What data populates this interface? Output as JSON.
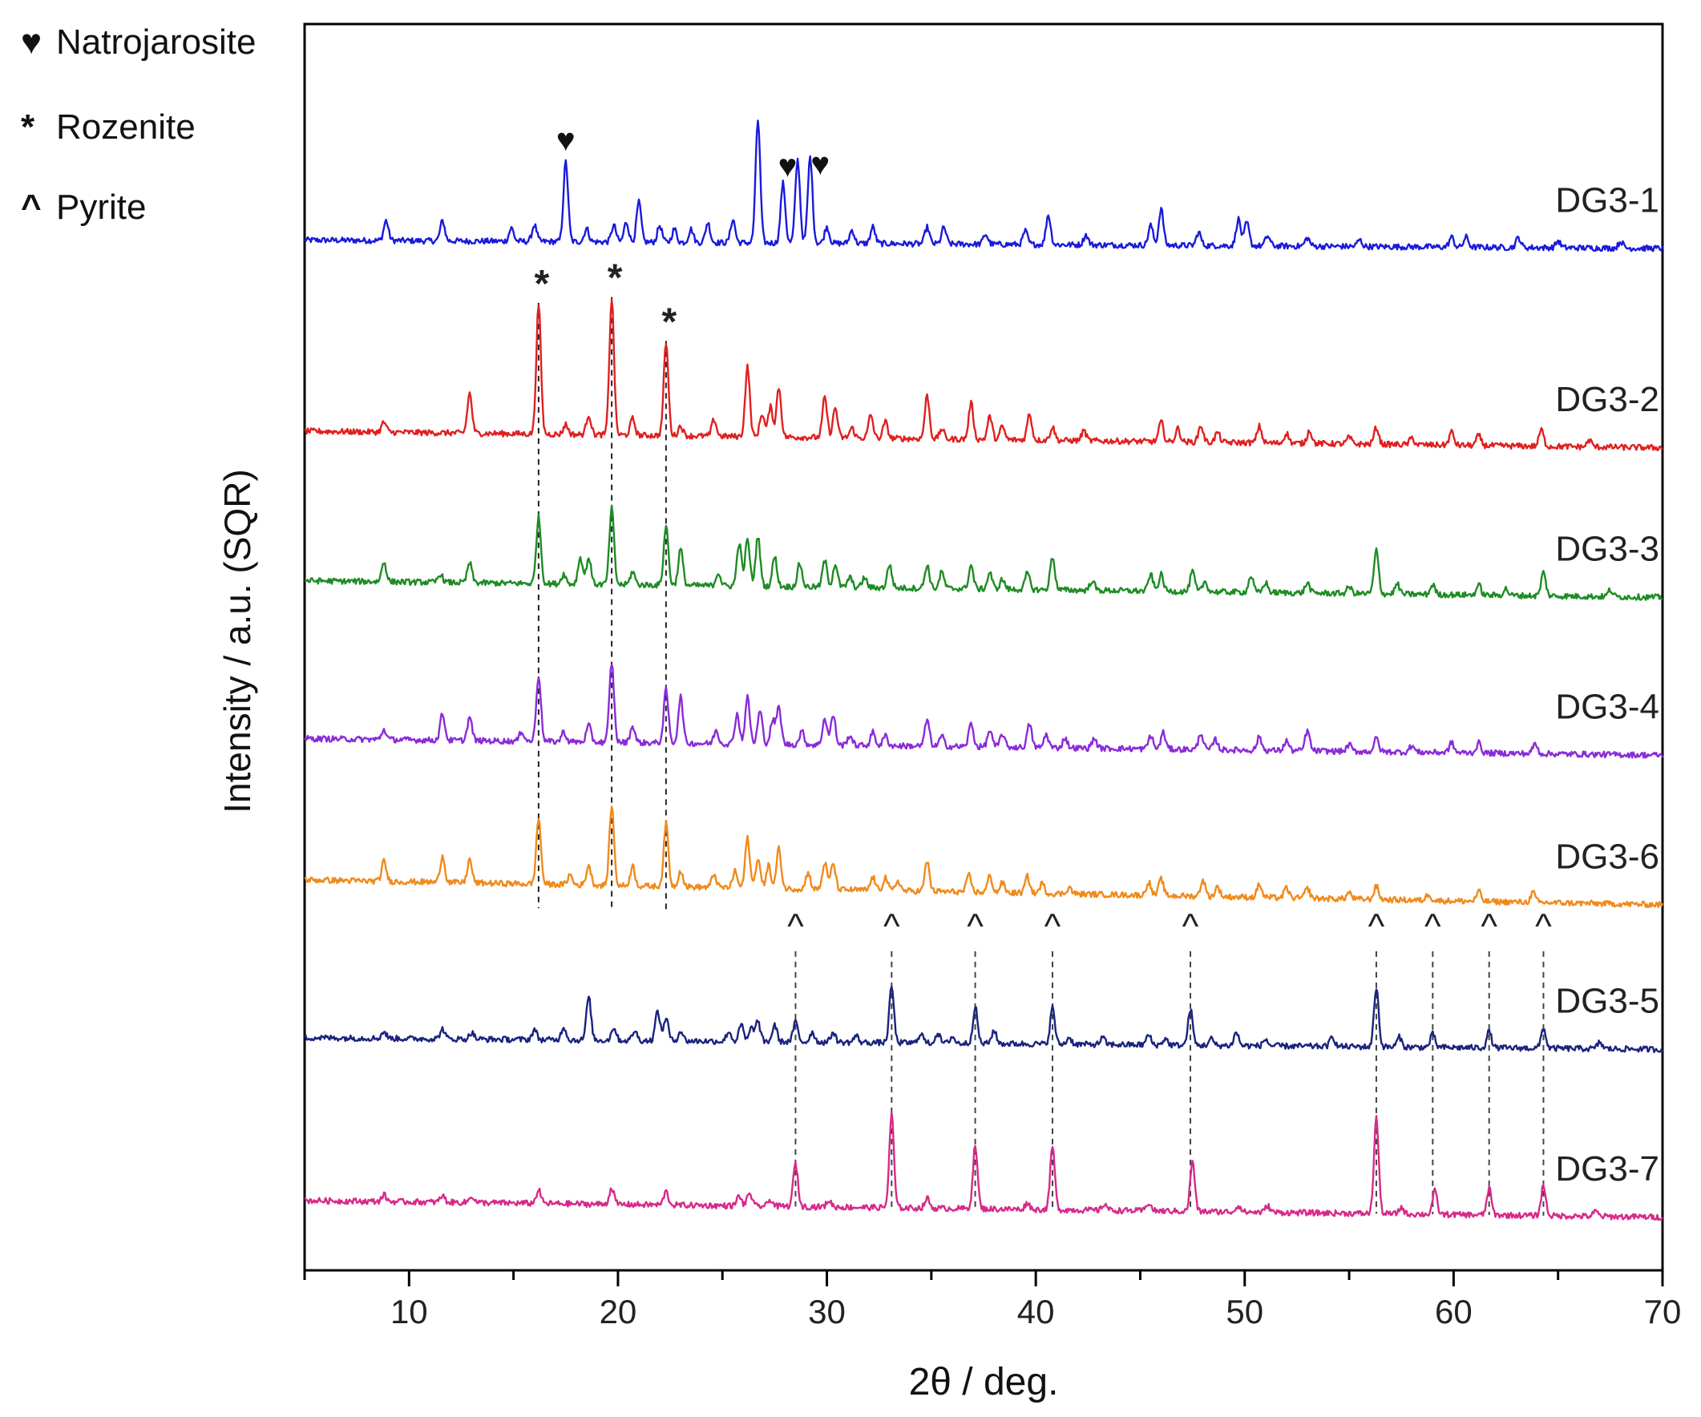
{
  "legend": {
    "natrojarosite": {
      "symbol": "♥",
      "label": "Natrojarosite"
    },
    "rozenite": {
      "symbol": "*",
      "label": "Rozenite"
    },
    "pyrite": {
      "symbol": "^",
      "label": "Pyrite"
    }
  },
  "chart_data": {
    "type": "line",
    "title": "",
    "xlabel": "2θ / deg.",
    "ylabel": "Intensity / a.u. (SQR)",
    "xlim": [
      5,
      70
    ],
    "xticks": [
      10,
      20,
      30,
      40,
      50,
      60,
      70
    ],
    "yticks": [],
    "grid": false,
    "series": [
      {
        "name": "DG3-1",
        "color": "#1a1adc",
        "offset": 6.2,
        "end_offset": 6.15,
        "peaks": [
          [
            8.9,
            0.12
          ],
          [
            11.6,
            0.12
          ],
          [
            14.9,
            0.08
          ],
          [
            16.0,
            0.1
          ],
          [
            17.5,
            0.48
          ],
          [
            18.5,
            0.08
          ],
          [
            19.8,
            0.1
          ],
          [
            20.4,
            0.12
          ],
          [
            21.0,
            0.24
          ],
          [
            22.0,
            0.1
          ],
          [
            22.7,
            0.08
          ],
          [
            23.5,
            0.08
          ],
          [
            24.3,
            0.12
          ],
          [
            25.5,
            0.14
          ],
          [
            26.7,
            0.74
          ],
          [
            27.9,
            0.36
          ],
          [
            28.6,
            0.5
          ],
          [
            29.2,
            0.52
          ],
          [
            30.0,
            0.1
          ],
          [
            31.2,
            0.08
          ],
          [
            32.2,
            0.1
          ],
          [
            34.8,
            0.1
          ],
          [
            35.6,
            0.1
          ],
          [
            37.6,
            0.06
          ],
          [
            39.5,
            0.08
          ],
          [
            40.6,
            0.18
          ],
          [
            42.4,
            0.06
          ],
          [
            45.5,
            0.12
          ],
          [
            46.0,
            0.22
          ],
          [
            47.8,
            0.08
          ],
          [
            49.7,
            0.16
          ],
          [
            50.1,
            0.14
          ],
          [
            51.1,
            0.06
          ],
          [
            53.0,
            0.05
          ],
          [
            55.5,
            0.04
          ],
          [
            59.9,
            0.06
          ],
          [
            60.6,
            0.06
          ],
          [
            63.1,
            0.06
          ],
          [
            65.0,
            0.04
          ],
          [
            68.0,
            0.04
          ]
        ]
      },
      {
        "name": "DG3-2",
        "color": "#e02020",
        "offset": 5.05,
        "end_offset": 4.95,
        "peaks": [
          [
            8.8,
            0.06
          ],
          [
            12.9,
            0.24
          ],
          [
            16.2,
            0.78
          ],
          [
            17.5,
            0.06
          ],
          [
            18.6,
            0.12
          ],
          [
            19.7,
            0.82
          ],
          [
            20.7,
            0.1
          ],
          [
            22.3,
            0.56
          ],
          [
            23.0,
            0.06
          ],
          [
            24.6,
            0.1
          ],
          [
            26.2,
            0.42
          ],
          [
            26.9,
            0.14
          ],
          [
            27.3,
            0.18
          ],
          [
            27.7,
            0.3
          ],
          [
            29.9,
            0.24
          ],
          [
            30.4,
            0.18
          ],
          [
            31.2,
            0.06
          ],
          [
            32.1,
            0.14
          ],
          [
            32.8,
            0.1
          ],
          [
            34.8,
            0.26
          ],
          [
            35.5,
            0.06
          ],
          [
            36.9,
            0.22
          ],
          [
            37.8,
            0.14
          ],
          [
            38.4,
            0.08
          ],
          [
            39.7,
            0.16
          ],
          [
            40.8,
            0.08
          ],
          [
            42.3,
            0.06
          ],
          [
            46.0,
            0.12
          ],
          [
            46.8,
            0.08
          ],
          [
            47.9,
            0.1
          ],
          [
            48.7,
            0.06
          ],
          [
            50.7,
            0.1
          ],
          [
            52.0,
            0.06
          ],
          [
            53.1,
            0.08
          ],
          [
            55.0,
            0.04
          ],
          [
            56.3,
            0.1
          ],
          [
            58.0,
            0.04
          ],
          [
            59.9,
            0.08
          ],
          [
            61.2,
            0.06
          ],
          [
            64.2,
            0.1
          ],
          [
            66.5,
            0.04
          ]
        ]
      },
      {
        "name": "DG3-3",
        "color": "#1e8c24",
        "offset": 4.15,
        "end_offset": 4.05,
        "peaks": [
          [
            8.8,
            0.12
          ],
          [
            11.5,
            0.05
          ],
          [
            12.9,
            0.12
          ],
          [
            16.2,
            0.4
          ],
          [
            17.4,
            0.06
          ],
          [
            18.2,
            0.16
          ],
          [
            18.6,
            0.16
          ],
          [
            19.7,
            0.46
          ],
          [
            20.7,
            0.08
          ],
          [
            22.3,
            0.36
          ],
          [
            23.0,
            0.22
          ],
          [
            24.8,
            0.08
          ],
          [
            25.8,
            0.26
          ],
          [
            26.2,
            0.28
          ],
          [
            26.7,
            0.3
          ],
          [
            27.5,
            0.18
          ],
          [
            28.7,
            0.14
          ],
          [
            29.9,
            0.16
          ],
          [
            30.4,
            0.14
          ],
          [
            31.1,
            0.06
          ],
          [
            31.8,
            0.06
          ],
          [
            33.0,
            0.14
          ],
          [
            34.8,
            0.14
          ],
          [
            35.5,
            0.1
          ],
          [
            36.9,
            0.14
          ],
          [
            37.8,
            0.1
          ],
          [
            38.4,
            0.06
          ],
          [
            39.6,
            0.1
          ],
          [
            40.8,
            0.2
          ],
          [
            42.7,
            0.06
          ],
          [
            45.5,
            0.1
          ],
          [
            46.0,
            0.1
          ],
          [
            47.5,
            0.12
          ],
          [
            48.1,
            0.06
          ],
          [
            50.3,
            0.1
          ],
          [
            51.0,
            0.06
          ],
          [
            53.0,
            0.06
          ],
          [
            55.0,
            0.04
          ],
          [
            56.3,
            0.26
          ],
          [
            57.3,
            0.06
          ],
          [
            59.0,
            0.06
          ],
          [
            61.2,
            0.06
          ],
          [
            62.5,
            0.04
          ],
          [
            64.3,
            0.14
          ],
          [
            67.5,
            0.04
          ]
        ]
      },
      {
        "name": "DG3-4",
        "color": "#8a2bd8",
        "offset": 3.2,
        "end_offset": 3.1,
        "peaks": [
          [
            8.8,
            0.06
          ],
          [
            11.6,
            0.16
          ],
          [
            12.9,
            0.14
          ],
          [
            15.4,
            0.06
          ],
          [
            16.2,
            0.4
          ],
          [
            17.4,
            0.06
          ],
          [
            18.6,
            0.1
          ],
          [
            19.7,
            0.48
          ],
          [
            20.7,
            0.1
          ],
          [
            22.3,
            0.32
          ],
          [
            23.0,
            0.28
          ],
          [
            24.7,
            0.08
          ],
          [
            25.7,
            0.18
          ],
          [
            26.2,
            0.28
          ],
          [
            26.8,
            0.2
          ],
          [
            27.4,
            0.14
          ],
          [
            27.7,
            0.22
          ],
          [
            28.8,
            0.08
          ],
          [
            29.9,
            0.16
          ],
          [
            30.3,
            0.18
          ],
          [
            31.1,
            0.06
          ],
          [
            32.2,
            0.08
          ],
          [
            32.8,
            0.06
          ],
          [
            34.8,
            0.16
          ],
          [
            35.5,
            0.06
          ],
          [
            36.9,
            0.14
          ],
          [
            37.8,
            0.1
          ],
          [
            38.4,
            0.08
          ],
          [
            39.7,
            0.14
          ],
          [
            40.5,
            0.08
          ],
          [
            41.4,
            0.06
          ],
          [
            42.8,
            0.06
          ],
          [
            45.5,
            0.08
          ],
          [
            46.1,
            0.1
          ],
          [
            47.9,
            0.1
          ],
          [
            48.6,
            0.06
          ],
          [
            50.7,
            0.08
          ],
          [
            52.0,
            0.06
          ],
          [
            53.0,
            0.12
          ],
          [
            55.0,
            0.04
          ],
          [
            56.3,
            0.08
          ],
          [
            58.0,
            0.04
          ],
          [
            59.9,
            0.06
          ],
          [
            61.2,
            0.06
          ],
          [
            63.9,
            0.06
          ]
        ]
      },
      {
        "name": "DG3-6",
        "color": "#f08a1c",
        "offset": 2.35,
        "end_offset": 2.2,
        "peaks": [
          [
            8.8,
            0.12
          ],
          [
            11.6,
            0.16
          ],
          [
            12.9,
            0.14
          ],
          [
            16.2,
            0.4
          ],
          [
            17.7,
            0.06
          ],
          [
            18.6,
            0.12
          ],
          [
            19.7,
            0.48
          ],
          [
            20.7,
            0.12
          ],
          [
            22.3,
            0.38
          ],
          [
            23.0,
            0.1
          ],
          [
            24.6,
            0.08
          ],
          [
            25.6,
            0.1
          ],
          [
            26.2,
            0.3
          ],
          [
            26.7,
            0.18
          ],
          [
            27.2,
            0.14
          ],
          [
            27.7,
            0.24
          ],
          [
            29.1,
            0.1
          ],
          [
            29.9,
            0.16
          ],
          [
            30.3,
            0.16
          ],
          [
            32.2,
            0.08
          ],
          [
            32.8,
            0.08
          ],
          [
            33.4,
            0.06
          ],
          [
            34.8,
            0.18
          ],
          [
            36.8,
            0.1
          ],
          [
            37.8,
            0.1
          ],
          [
            38.4,
            0.06
          ],
          [
            39.6,
            0.1
          ],
          [
            40.3,
            0.06
          ],
          [
            41.6,
            0.04
          ],
          [
            45.4,
            0.08
          ],
          [
            46.0,
            0.1
          ],
          [
            48.0,
            0.1
          ],
          [
            48.7,
            0.06
          ],
          [
            50.7,
            0.08
          ],
          [
            52.0,
            0.06
          ],
          [
            53.0,
            0.06
          ],
          [
            55.0,
            0.04
          ],
          [
            56.3,
            0.08
          ],
          [
            58.8,
            0.04
          ],
          [
            61.2,
            0.06
          ],
          [
            63.8,
            0.06
          ]
        ]
      },
      {
        "name": "DG3-5",
        "color": "#1a237e",
        "offset": 1.4,
        "end_offset": 1.33,
        "peaks": [
          [
            8.8,
            0.04
          ],
          [
            11.6,
            0.06
          ],
          [
            13.0,
            0.04
          ],
          [
            16.0,
            0.06
          ],
          [
            17.4,
            0.08
          ],
          [
            18.6,
            0.26
          ],
          [
            19.8,
            0.08
          ],
          [
            20.8,
            0.06
          ],
          [
            21.9,
            0.18
          ],
          [
            22.3,
            0.14
          ],
          [
            23.0,
            0.06
          ],
          [
            25.3,
            0.06
          ],
          [
            25.9,
            0.1
          ],
          [
            26.4,
            0.08
          ],
          [
            26.7,
            0.12
          ],
          [
            27.5,
            0.1
          ],
          [
            28.5,
            0.12
          ],
          [
            29.3,
            0.06
          ],
          [
            30.3,
            0.06
          ],
          [
            31.4,
            0.04
          ],
          [
            33.1,
            0.34
          ],
          [
            34.5,
            0.06
          ],
          [
            35.3,
            0.06
          ],
          [
            36.0,
            0.04
          ],
          [
            37.1,
            0.22
          ],
          [
            38.0,
            0.08
          ],
          [
            40.8,
            0.22
          ],
          [
            41.6,
            0.04
          ],
          [
            43.2,
            0.04
          ],
          [
            45.4,
            0.06
          ],
          [
            46.2,
            0.04
          ],
          [
            47.4,
            0.22
          ],
          [
            48.4,
            0.04
          ],
          [
            49.6,
            0.08
          ],
          [
            51.0,
            0.04
          ],
          [
            54.2,
            0.06
          ],
          [
            56.3,
            0.36
          ],
          [
            57.4,
            0.06
          ],
          [
            59.0,
            0.08
          ],
          [
            61.7,
            0.1
          ],
          [
            64.3,
            0.12
          ],
          [
            67.0,
            0.04
          ]
        ]
      },
      {
        "name": "DG3-7",
        "color": "#d62a8a",
        "offset": 0.42,
        "end_offset": 0.32,
        "peaks": [
          [
            8.8,
            0.04
          ],
          [
            11.6,
            0.04
          ],
          [
            13.0,
            0.04
          ],
          [
            16.2,
            0.08
          ],
          [
            19.7,
            0.1
          ],
          [
            22.3,
            0.08
          ],
          [
            25.8,
            0.06
          ],
          [
            26.3,
            0.08
          ],
          [
            27.3,
            0.04
          ],
          [
            28.5,
            0.26
          ],
          [
            30.1,
            0.04
          ],
          [
            33.1,
            0.56
          ],
          [
            34.8,
            0.06
          ],
          [
            37.1,
            0.38
          ],
          [
            39.6,
            0.04
          ],
          [
            40.8,
            0.38
          ],
          [
            43.3,
            0.04
          ],
          [
            45.4,
            0.05
          ],
          [
            47.5,
            0.3
          ],
          [
            49.7,
            0.04
          ],
          [
            51.1,
            0.04
          ],
          [
            56.3,
            0.58
          ],
          [
            57.5,
            0.04
          ],
          [
            59.1,
            0.14
          ],
          [
            61.7,
            0.16
          ],
          [
            64.3,
            0.18
          ],
          [
            66.8,
            0.03
          ]
        ]
      }
    ],
    "annotations": {
      "natrojarosite_markers": [
        17.5,
        28.5,
        29.3
      ],
      "rozenite_markers": [
        16.2,
        19.7,
        22.3
      ],
      "pyrite_markers": [
        28.5,
        33.1,
        37.1,
        40.8,
        47.4,
        56.3,
        59.0,
        61.7,
        64.3
      ]
    }
  }
}
